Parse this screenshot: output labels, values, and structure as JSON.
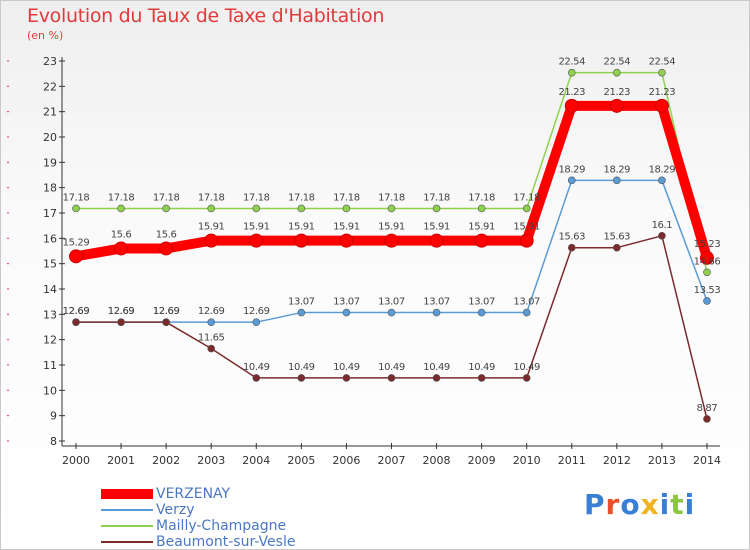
{
  "title": "Evolution du Taux de Taxe d'Habitation",
  "subtitle": "(en %)",
  "brand": {
    "text": "Proxiti",
    "letter_colors": [
      "#3a7fd6",
      "#e8502a",
      "#3a7fd6",
      "#f0b41e",
      "#3a7fd6",
      "#8cc63e",
      "#3a7fd6"
    ]
  },
  "colors": {
    "title": "#e03a3a",
    "axis": "#333333",
    "legend_text": "#4a78c2"
  },
  "chart_data": {
    "type": "line",
    "title": "Evolution du Taux de Taxe d'Habitation",
    "ylabel": "(en %)",
    "xlabel": "",
    "x": [
      "2000",
      "2001",
      "2002",
      "2003",
      "2004",
      "2005",
      "2006",
      "2007",
      "2008",
      "2009",
      "2010",
      "2011",
      "2012",
      "2013",
      "2014"
    ],
    "ylim": [
      8,
      23
    ],
    "yticks": [
      8,
      9,
      10,
      11,
      12,
      13,
      14,
      15,
      16,
      17,
      18,
      19,
      20,
      21,
      22,
      23
    ],
    "grid": false,
    "legend": "bottom-left",
    "series": [
      {
        "name": "VERZENAY",
        "color": "#ff0000",
        "width": 10,
        "values": [
          15.29,
          15.6,
          15.6,
          15.91,
          15.91,
          15.91,
          15.91,
          15.91,
          15.91,
          15.91,
          15.91,
          21.23,
          21.23,
          21.23,
          15.23
        ],
        "labels": [
          "15.29",
          "15.6",
          "15.6",
          "15.91",
          "15.91",
          "15.91",
          "15.91",
          "15.91",
          "15.91",
          "15.91",
          "15.91",
          "21.23",
          "21.23",
          "21.23",
          "15.23"
        ]
      },
      {
        "name": "Verzy",
        "color": "#5b9bd5",
        "width": 1.5,
        "values": [
          12.69,
          12.69,
          12.69,
          12.69,
          12.69,
          13.07,
          13.07,
          13.07,
          13.07,
          13.07,
          13.07,
          18.29,
          18.29,
          18.29,
          13.53
        ],
        "labels": [
          "12.69",
          "12.69",
          "12.69",
          "12.69",
          "12.69",
          "13.07",
          "13.07",
          "13.07",
          "13.07",
          "13.07",
          "13.07",
          "18.29",
          "18.29",
          "18.29",
          "13.53"
        ]
      },
      {
        "name": "Mailly-Champagne",
        "color": "#8fd14f",
        "width": 1.5,
        "values": [
          17.18,
          17.18,
          17.18,
          17.18,
          17.18,
          17.18,
          17.18,
          17.18,
          17.18,
          17.18,
          17.18,
          22.54,
          22.54,
          22.54,
          14.66
        ],
        "labels": [
          "17.18",
          "17.18",
          "17.18",
          "17.18",
          "17.18",
          "17.18",
          "17.18",
          "17.18",
          "17.18",
          "17.18",
          "17.18",
          "22.54",
          "22.54",
          "22.54",
          "14.66"
        ]
      },
      {
        "name": "Beaumont-sur-Vesle",
        "color": "#7b2b2b",
        "width": 1.5,
        "values": [
          12.69,
          12.69,
          12.69,
          11.65,
          10.49,
          10.49,
          10.49,
          10.49,
          10.49,
          10.49,
          10.49,
          15.63,
          15.63,
          16.1,
          8.87
        ],
        "labels": [
          "12.69",
          "12.69",
          "12.69",
          "11.65",
          "10.49",
          "10.49",
          "10.49",
          "10.49",
          "10.49",
          "10.49",
          "10.49",
          "15.63",
          "15.63",
          "16.1",
          "8.87"
        ]
      }
    ]
  }
}
